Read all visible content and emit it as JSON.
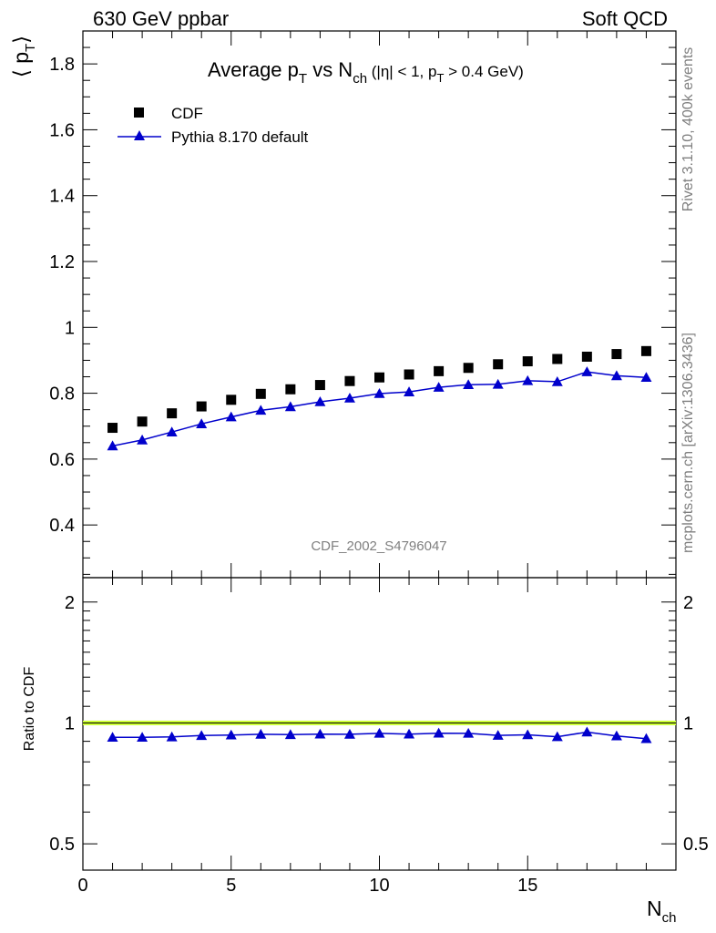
{
  "header": {
    "left": "630 GeV ppbar",
    "right": "Soft QCD"
  },
  "side_labels": {
    "rivet": "Rivet 3.1.10,  400k events",
    "mcplots": "mcplots.cern.ch [arXiv:1306.3436]"
  },
  "watermark": "CDF_2002_S4796047",
  "chart_data": [
    {
      "type": "scatter",
      "panel": "main",
      "title": {
        "main": "Average p",
        "main_sub": "T",
        "vs": " vs N",
        "vs_sub": "ch",
        "cut_open": " (|η| < 1, p",
        "cut_sub": "T",
        "cut_close": " > 0.4 GeV)"
      },
      "ylabel": {
        "open": "⟨ p",
        "sub": "T",
        "close": "⟩"
      },
      "xlim": [
        0,
        20
      ],
      "ylim": [
        0.24,
        1.9
      ],
      "y_ticks": [
        "0.4",
        "0.6",
        "0.8",
        "1",
        "1.2",
        "1.4",
        "1.6",
        "1.8"
      ],
      "legend_position": "top-left",
      "x": [
        1,
        2,
        3,
        4,
        5,
        6,
        7,
        8,
        9,
        10,
        11,
        12,
        13,
        14,
        15,
        16,
        17,
        18,
        19
      ],
      "series": [
        {
          "name": "CDF",
          "marker": "square",
          "color": "#000000",
          "values": [
            0.695,
            0.714,
            0.739,
            0.76,
            0.78,
            0.798,
            0.812,
            0.825,
            0.837,
            0.848,
            0.857,
            0.867,
            0.877,
            0.888,
            0.897,
            0.904,
            0.911,
            0.919,
            0.928
          ]
        },
        {
          "name": "Pythia 8.170 default",
          "marker": "triangle",
          "line": true,
          "color": "#0000cc",
          "values": [
            0.64,
            0.658,
            0.682,
            0.707,
            0.728,
            0.748,
            0.759,
            0.774,
            0.785,
            0.799,
            0.804,
            0.818,
            0.826,
            0.827,
            0.838,
            0.835,
            0.865,
            0.853,
            0.848
          ]
        }
      ]
    },
    {
      "type": "line",
      "panel": "ratio",
      "ylabel": "Ratio to CDF",
      "xlabel": {
        "main": "N",
        "sub": "ch"
      },
      "xlim": [
        0,
        20
      ],
      "ylim": [
        0.43,
        2.3
      ],
      "y_scale": "log",
      "y_ticks": [
        "0.5",
        "1",
        "2"
      ],
      "x_ticks": [
        "0",
        "5",
        "10",
        "15"
      ],
      "reference": {
        "value": 1,
        "band_color": "#ccff33",
        "line_color": "#000000"
      },
      "x": [
        1,
        2,
        3,
        4,
        5,
        6,
        7,
        8,
        9,
        10,
        11,
        12,
        13,
        14,
        15,
        16,
        17,
        18,
        19
      ],
      "series": [
        {
          "name": "Pythia 8.170 default",
          "color": "#0000cc",
          "marker": "triangle",
          "values": [
            0.921,
            0.921,
            0.923,
            0.93,
            0.933,
            0.937,
            0.935,
            0.938,
            0.937,
            0.942,
            0.938,
            0.943,
            0.942,
            0.931,
            0.934,
            0.924,
            0.949,
            0.928,
            0.914
          ]
        }
      ]
    }
  ]
}
